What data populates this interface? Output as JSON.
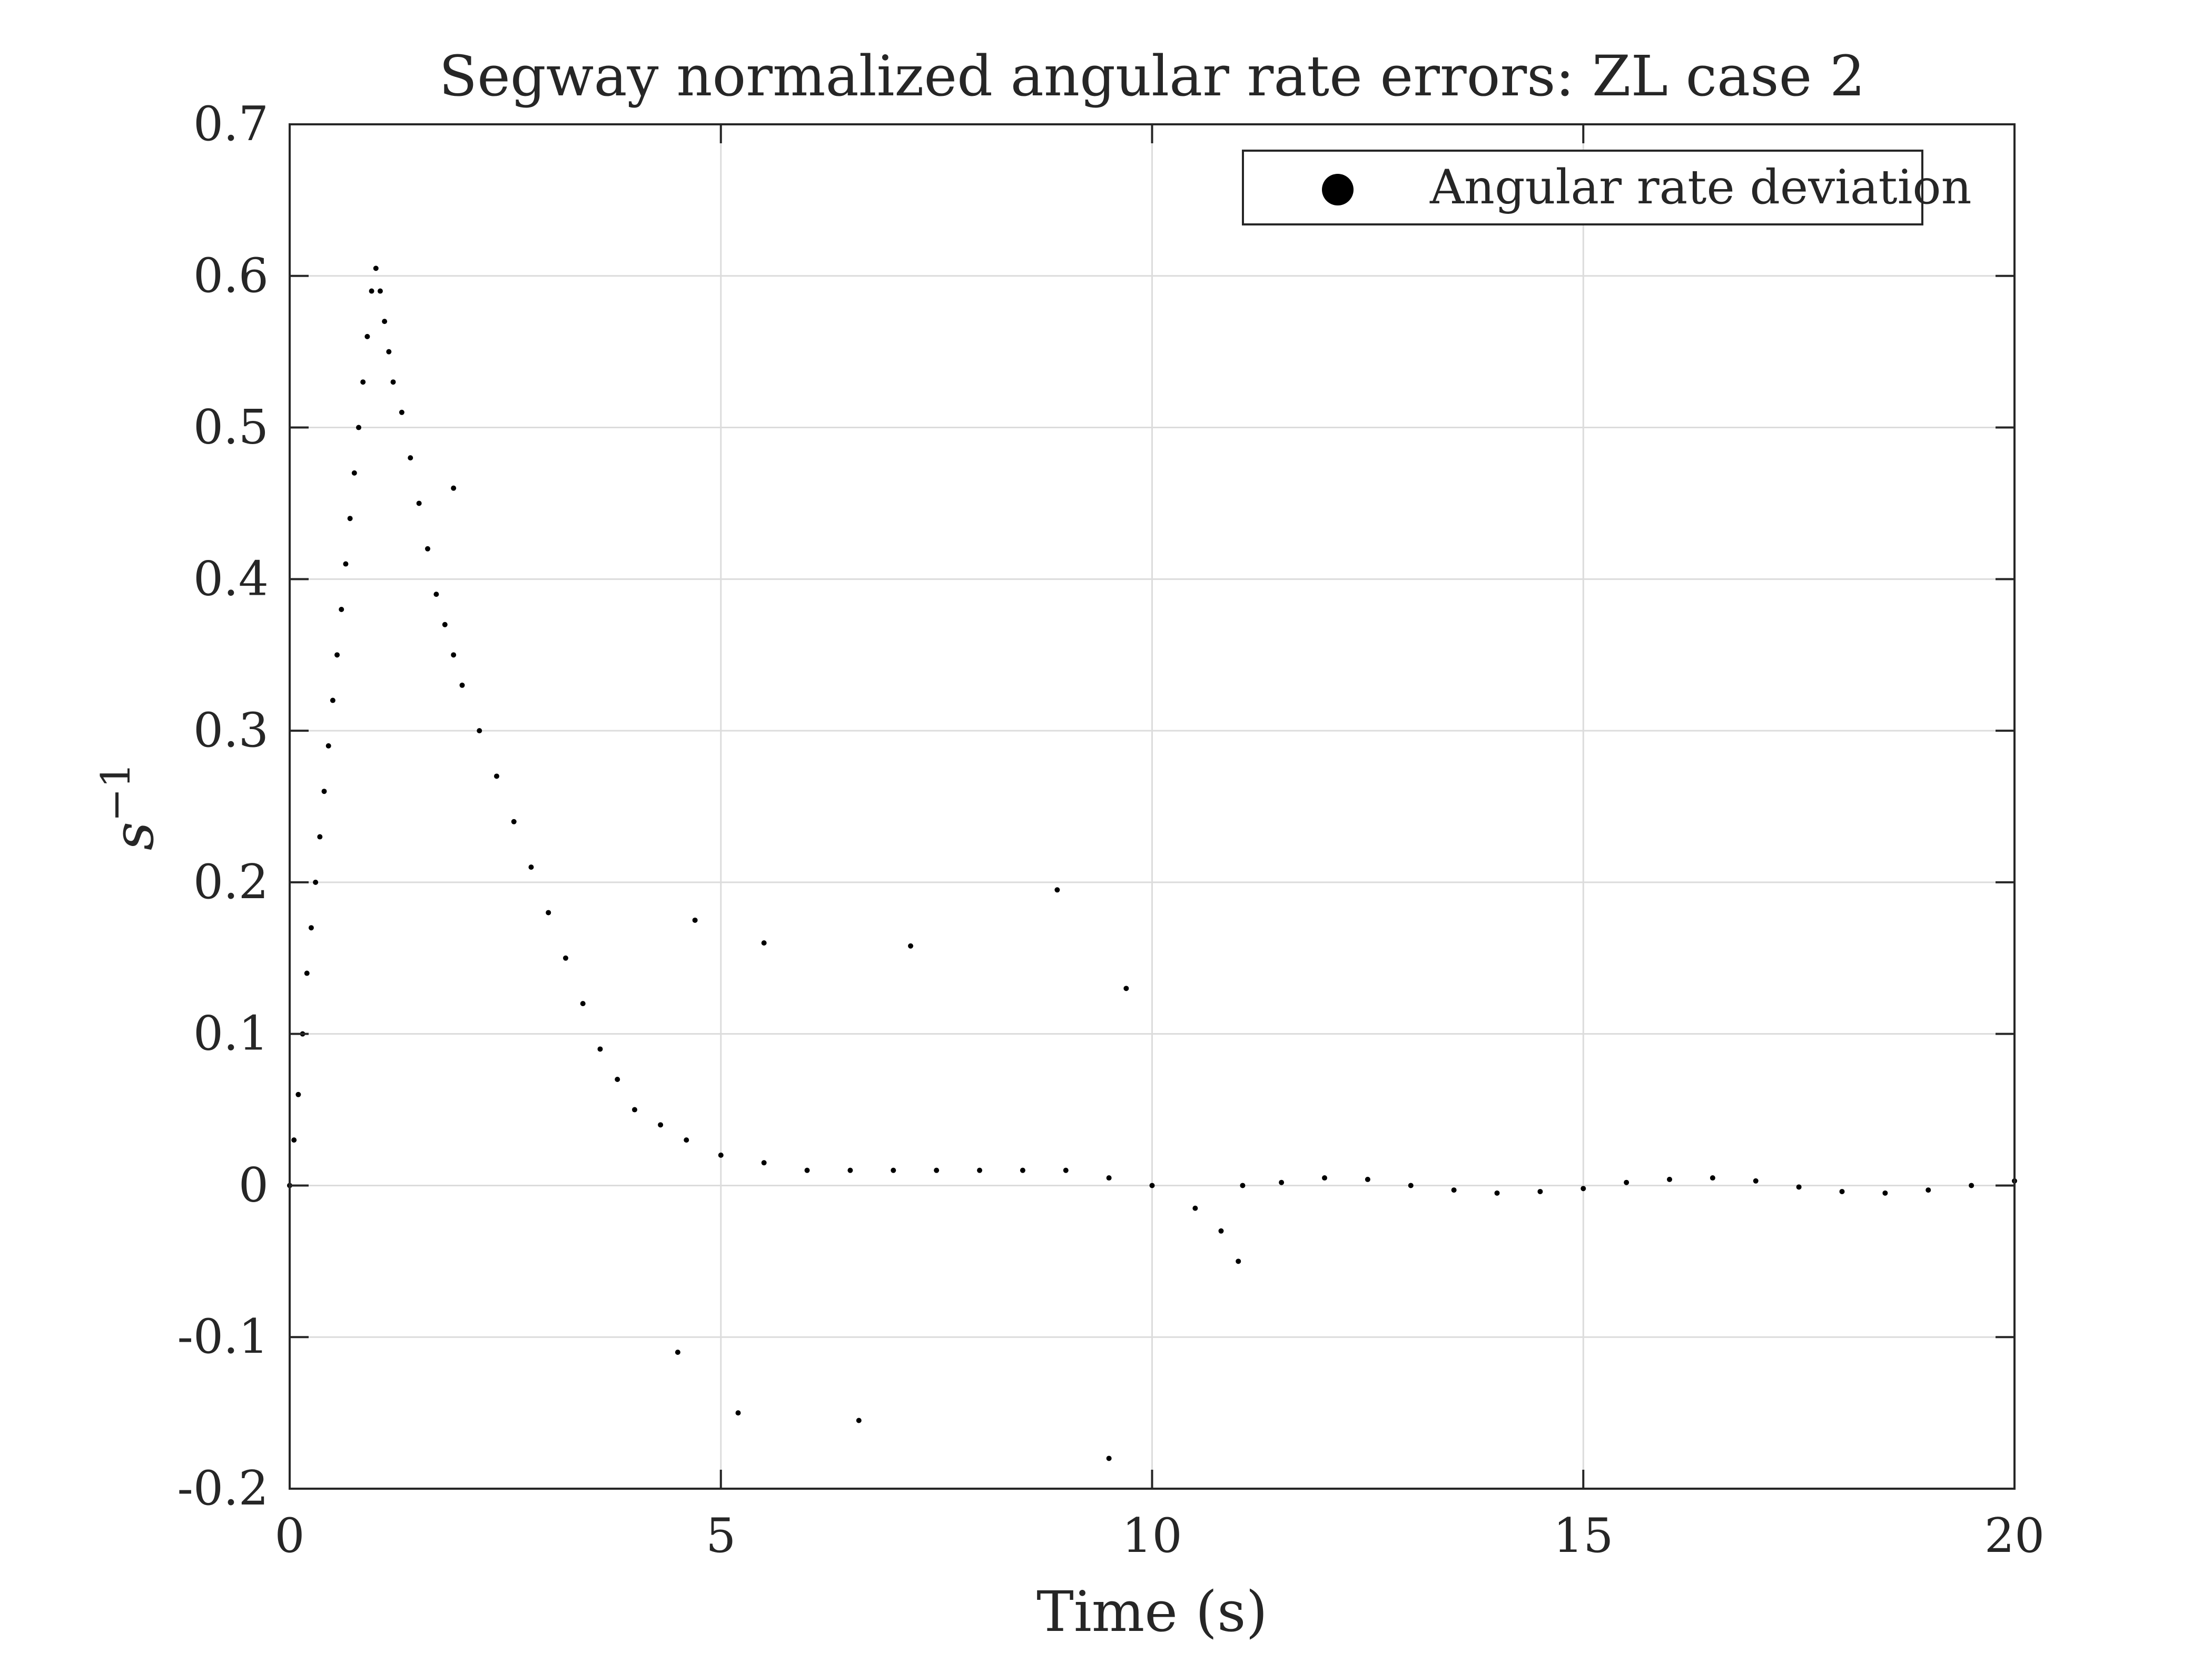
{
  "chart_data": {
    "type": "scatter",
    "title": "Segway normalized angular rate errors: ZL case 2",
    "xlabel": "Time (s)",
    "ylabel": "s",
    "ylabel_superscript": "−1",
    "xlim": [
      0,
      20
    ],
    "ylim": [
      -0.2,
      0.7
    ],
    "xticks": [
      0,
      5,
      10,
      15,
      20
    ],
    "yticks": [
      -0.2,
      -0.1,
      0,
      0.1,
      0.2,
      0.3,
      0.4,
      0.5,
      0.6,
      0.7
    ],
    "xtick_labels": [
      "0",
      "5",
      "10",
      "15",
      "20"
    ],
    "ytick_labels": [
      "-0.2",
      "-0.1",
      "0",
      "0.1",
      "0.2",
      "0.3",
      "0.4",
      "0.5",
      "0.6",
      "0.7"
    ],
    "grid": true,
    "legend": {
      "position": "top-right",
      "entries": [
        "Angular rate deviation"
      ]
    },
    "series": [
      {
        "name": "Angular rate deviation",
        "color": "#000000",
        "points": [
          [
            0.0,
            0.0
          ],
          [
            0.05,
            0.03
          ],
          [
            0.1,
            0.06
          ],
          [
            0.15,
            0.1
          ],
          [
            0.2,
            0.14
          ],
          [
            0.25,
            0.17
          ],
          [
            0.3,
            0.2
          ],
          [
            0.35,
            0.23
          ],
          [
            0.4,
            0.26
          ],
          [
            0.45,
            0.29
          ],
          [
            0.5,
            0.32
          ],
          [
            0.55,
            0.35
          ],
          [
            0.6,
            0.38
          ],
          [
            0.65,
            0.41
          ],
          [
            0.7,
            0.44
          ],
          [
            0.75,
            0.47
          ],
          [
            0.8,
            0.5
          ],
          [
            0.85,
            0.53
          ],
          [
            0.9,
            0.56
          ],
          [
            0.95,
            0.59
          ],
          [
            1.0,
            0.605
          ],
          [
            1.05,
            0.59
          ],
          [
            1.1,
            0.57
          ],
          [
            1.15,
            0.55
          ],
          [
            1.2,
            0.53
          ],
          [
            1.3,
            0.51
          ],
          [
            1.4,
            0.48
          ],
          [
            1.5,
            0.45
          ],
          [
            1.6,
            0.42
          ],
          [
            1.7,
            0.39
          ],
          [
            1.8,
            0.37
          ],
          [
            1.9,
            0.35
          ],
          [
            2.0,
            0.33
          ],
          [
            2.2,
            0.3
          ],
          [
            2.4,
            0.27
          ],
          [
            2.6,
            0.24
          ],
          [
            2.8,
            0.21
          ],
          [
            3.0,
            0.18
          ],
          [
            3.2,
            0.15
          ],
          [
            3.4,
            0.12
          ],
          [
            3.6,
            0.09
          ],
          [
            3.8,
            0.07
          ],
          [
            4.0,
            0.05
          ],
          [
            4.3,
            0.04
          ],
          [
            4.6,
            0.03
          ],
          [
            5.0,
            0.02
          ],
          [
            5.5,
            0.015
          ],
          [
            6.0,
            0.01
          ],
          [
            6.5,
            0.01
          ],
          [
            7.0,
            0.01
          ],
          [
            7.5,
            0.01
          ],
          [
            8.0,
            0.01
          ],
          [
            8.5,
            0.01
          ],
          [
            9.0,
            0.01
          ],
          [
            9.5,
            0.005
          ],
          [
            10.0,
            0.0
          ],
          [
            10.5,
            -0.015
          ],
          [
            10.8,
            -0.03
          ],
          [
            11.0,
            -0.05
          ],
          [
            11.05,
            0.0
          ],
          [
            11.5,
            0.002
          ],
          [
            12.0,
            0.005
          ],
          [
            12.5,
            0.004
          ],
          [
            13.0,
            0.0
          ],
          [
            13.5,
            -0.003
          ],
          [
            14.0,
            -0.005
          ],
          [
            14.5,
            -0.004
          ],
          [
            15.0,
            -0.002
          ],
          [
            15.5,
            0.002
          ],
          [
            16.0,
            0.004
          ],
          [
            16.5,
            0.005
          ],
          [
            17.0,
            0.003
          ],
          [
            17.5,
            -0.001
          ],
          [
            18.0,
            -0.004
          ],
          [
            18.5,
            -0.005
          ],
          [
            19.0,
            -0.003
          ],
          [
            19.5,
            0.0
          ],
          [
            20.0,
            0.003
          ],
          [
            4.5,
            -0.11
          ],
          [
            5.2,
            -0.15
          ],
          [
            6.6,
            -0.155
          ],
          [
            9.5,
            -0.18
          ],
          [
            8.9,
            0.195
          ],
          [
            7.2,
            0.158
          ],
          [
            5.5,
            0.16
          ],
          [
            4.7,
            0.175
          ],
          [
            9.7,
            0.13
          ],
          [
            1.9,
            0.46
          ]
        ]
      }
    ]
  }
}
